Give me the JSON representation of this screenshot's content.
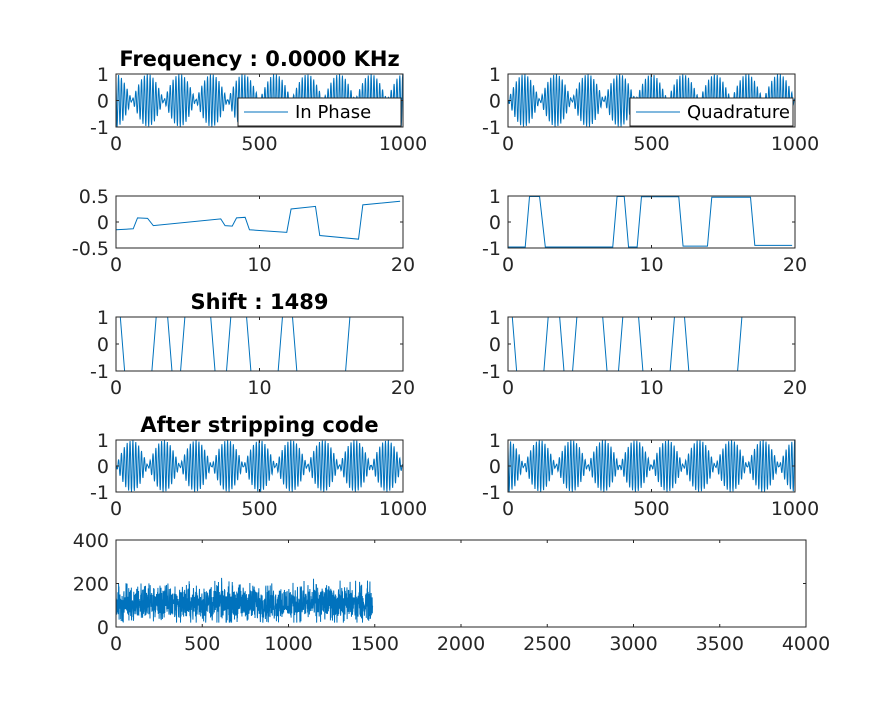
{
  "figure": {
    "line_color": "#0072bd",
    "axis_color": "#262626"
  },
  "chart_data": [
    {
      "id": "p1",
      "type": "line",
      "title": "Frequency : 0.0000 KHz",
      "xlim": [
        0,
        1000
      ],
      "ylim": [
        -1,
        1
      ],
      "xticks": [
        "0",
        "500",
        "1000"
      ],
      "yticks": [
        "1",
        "0",
        "-1"
      ],
      "legend": "In Phase",
      "legend_position": "bottom-right",
      "signal": {
        "kind": "modulated",
        "n": 1000,
        "period_samples": 10,
        "envelope_phase": "cos",
        "envelope_cycles": 9
      }
    },
    {
      "id": "p2",
      "type": "line",
      "title": "",
      "xlim": [
        0,
        1000
      ],
      "ylim": [
        -1,
        1
      ],
      "xticks": [
        "0",
        "500",
        "1000"
      ],
      "yticks": [
        "1",
        "0",
        "-1"
      ],
      "legend": "Quadrature",
      "legend_position": "bottom-right",
      "signal": {
        "kind": "modulated",
        "n": 1000,
        "period_samples": 10,
        "envelope_phase": "sin",
        "envelope_cycles": 9
      }
    },
    {
      "id": "p3",
      "type": "line",
      "title": "",
      "xlim": [
        0,
        20
      ],
      "ylim": [
        -0.5,
        0.5
      ],
      "xticks": [
        "0",
        "10",
        "20"
      ],
      "yticks": [
        "0.5",
        "0",
        "-0.5"
      ],
      "x": [
        0,
        1.2,
        1.5,
        2.2,
        2.6,
        7.3,
        7.6,
        8.1,
        8.4,
        9.0,
        9.3,
        11.9,
        12.2,
        13.9,
        14.2,
        16.9,
        17.2,
        19.8
      ],
      "y": [
        -0.15,
        -0.13,
        0.08,
        0.07,
        -0.07,
        0.06,
        -0.07,
        -0.08,
        0.08,
        0.09,
        -0.15,
        -0.2,
        0.25,
        0.3,
        -0.26,
        -0.33,
        0.33,
        0.4
      ]
    },
    {
      "id": "p4",
      "type": "line",
      "title": "",
      "xlim": [
        0,
        20
      ],
      "ylim": [
        -1,
        1
      ],
      "xticks": [
        "0",
        "10",
        "20"
      ],
      "yticks": [
        "1",
        "0",
        "-1"
      ],
      "x": [
        0,
        1.2,
        1.5,
        2.2,
        2.6,
        7.3,
        7.6,
        8.1,
        8.4,
        9.0,
        9.3,
        11.9,
        12.2,
        13.9,
        14.2,
        16.9,
        17.2,
        19.8
      ],
      "y": [
        -0.96,
        -0.96,
        0.98,
        0.98,
        -0.96,
        -0.96,
        0.98,
        0.98,
        -0.96,
        -0.96,
        0.97,
        0.97,
        -0.93,
        -0.93,
        0.95,
        0.95,
        -0.9,
        -0.9
      ]
    },
    {
      "id": "p5",
      "type": "line",
      "title": "Shift : 1489",
      "xlim": [
        0,
        20
      ],
      "ylim": [
        -1,
        1
      ],
      "xticks": [
        "0",
        "10",
        "20"
      ],
      "yticks": [
        "1",
        "0",
        "-1"
      ],
      "x": [
        0,
        0.3,
        0.6,
        2.5,
        2.8,
        3.6,
        3.9,
        4.5,
        4.8,
        6.6,
        6.9,
        7.7,
        8.0,
        9.1,
        9.4,
        11.3,
        11.6,
        12.3,
        12.6,
        16.0,
        16.3,
        20
      ],
      "y": [
        1,
        1,
        -1,
        -1,
        1,
        1,
        -1,
        -1,
        1,
        1,
        -1,
        -1,
        1,
        1,
        -1,
        -1,
        1,
        1,
        -1,
        -1,
        1,
        1
      ]
    },
    {
      "id": "p6",
      "type": "line",
      "title": "",
      "xlim": [
        0,
        20
      ],
      "ylim": [
        -1,
        1
      ],
      "xticks": [
        "0",
        "10",
        "20"
      ],
      "yticks": [
        "1",
        "0",
        "-1"
      ],
      "x": [
        0,
        0.3,
        0.6,
        2.5,
        2.8,
        3.6,
        3.9,
        4.5,
        4.8,
        6.6,
        6.9,
        7.7,
        8.0,
        9.1,
        9.4,
        11.3,
        11.6,
        12.3,
        12.6,
        16.0,
        16.3,
        20
      ],
      "y": [
        1,
        1,
        -1,
        -1,
        1,
        1,
        -1,
        -1,
        1,
        1,
        -1,
        -1,
        1,
        1,
        -1,
        -1,
        1,
        1,
        -1,
        -1,
        1,
        1
      ]
    },
    {
      "id": "p7",
      "type": "line",
      "title": "After stripping code",
      "xlim": [
        0,
        1000
      ],
      "ylim": [
        -1,
        1
      ],
      "xticks": [
        "0",
        "500",
        "1000"
      ],
      "yticks": [
        "1",
        "0",
        "-1"
      ],
      "signal": {
        "kind": "modulated",
        "n": 1000,
        "period_samples": 10,
        "envelope_phase": "sin",
        "envelope_cycles": 9
      }
    },
    {
      "id": "p8",
      "type": "line",
      "title": "",
      "xlim": [
        0,
        1000
      ],
      "ylim": [
        -1,
        1
      ],
      "xticks": [
        "0",
        "500",
        "1000"
      ],
      "yticks": [
        "1",
        "0",
        "-1"
      ],
      "signal": {
        "kind": "modulated",
        "n": 1000,
        "period_samples": 10,
        "envelope_phase": "cos",
        "envelope_cycles": 9
      }
    },
    {
      "id": "p9",
      "type": "line",
      "title": "",
      "xlim": [
        0,
        4000
      ],
      "ylim": [
        0,
        400
      ],
      "xticks": [
        "0",
        "500",
        "1000",
        "1500",
        "2000",
        "2500",
        "3000",
        "3500",
        "4000"
      ],
      "yticks": [
        "400",
        "200",
        "0"
      ],
      "signal": {
        "kind": "noise",
        "n": 1489,
        "mean": 110,
        "spread": 60,
        "min": 20,
        "max": 285
      }
    }
  ]
}
